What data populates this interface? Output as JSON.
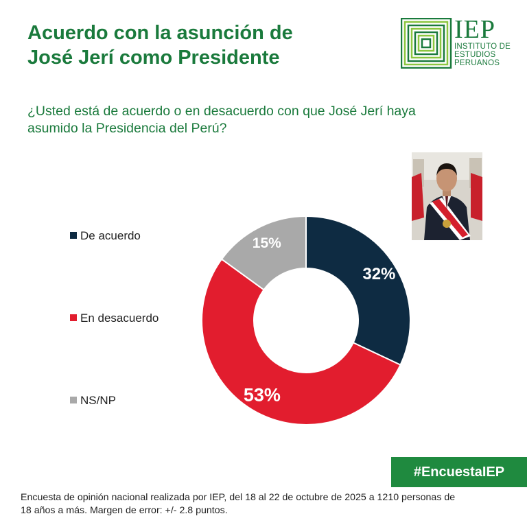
{
  "header": {
    "title_line1": "Acuerdo con la asunción de",
    "title_line2": "José Jerí como Presidente"
  },
  "logo": {
    "name": "IEP",
    "line1": "INSTITUTO DE",
    "line2": "ESTUDIOS",
    "line3": "PERUANOS",
    "color": "#1a7a3c",
    "icon": "iep-logo-icon"
  },
  "question": {
    "line1": "¿Usted está de acuerdo o en desacuerdo con que José Jerí haya",
    "line2": "asumido la Presidencia del Perú?"
  },
  "photo": {
    "icon": "president-portrait-photo"
  },
  "chart_data": {
    "type": "pie",
    "variant": "donut",
    "labels": [
      "De acuerdo",
      "En desacuerdo",
      "NS/NP"
    ],
    "values": [
      32,
      53,
      15
    ],
    "data_labels": [
      "32%",
      "53%",
      "15%"
    ],
    "colors": [
      "#0e2b42",
      "#e21d2e",
      "#a9a9a9"
    ],
    "legend_position": "left"
  },
  "hashtag": "#EncuestaIEP",
  "footer": {
    "line1": "Encuesta de opinión nacional realizada por IEP, del 18 al 22 de octubre de 2025 a 1210 personas de",
    "line2": "18 años a más. Margen de error: +/- 2.8 puntos."
  }
}
